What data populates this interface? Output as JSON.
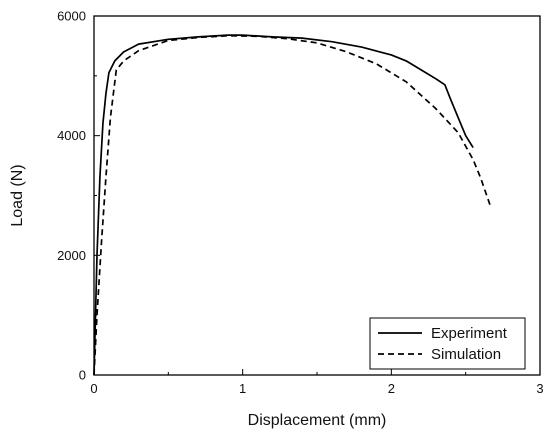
{
  "chart_data": {
    "type": "line",
    "title": "",
    "xlabel": "Displacement (mm)",
    "ylabel": "Load (N)",
    "xlim": [
      0,
      3
    ],
    "ylim": [
      0,
      6000
    ],
    "xticks": [
      0,
      1,
      2,
      3
    ],
    "yticks": [
      0,
      2000,
      4000,
      6000
    ],
    "x_tick_labels": [
      "0",
      "1",
      "2",
      "3"
    ],
    "y_tick_labels": [
      "0",
      "2000",
      "4000",
      "6000"
    ],
    "grid": false,
    "legend": {
      "position": "bottom-right",
      "entries": [
        "Experiment",
        "Simulation"
      ]
    },
    "series": [
      {
        "name": "Experiment",
        "style": "solid",
        "color": "#000000",
        "points": [
          [
            0.0,
            0
          ],
          [
            0.02,
            2000
          ],
          [
            0.04,
            3300
          ],
          [
            0.06,
            4200
          ],
          [
            0.08,
            4700
          ],
          [
            0.1,
            5050
          ],
          [
            0.14,
            5250
          ],
          [
            0.2,
            5400
          ],
          [
            0.3,
            5530
          ],
          [
            0.5,
            5610
          ],
          [
            0.7,
            5650
          ],
          [
            0.9,
            5680
          ],
          [
            1.0,
            5680
          ],
          [
            1.2,
            5650
          ],
          [
            1.4,
            5630
          ],
          [
            1.6,
            5570
          ],
          [
            1.8,
            5480
          ],
          [
            2.0,
            5350
          ],
          [
            2.1,
            5250
          ],
          [
            2.2,
            5100
          ],
          [
            2.3,
            4950
          ],
          [
            2.36,
            4850
          ],
          [
            2.4,
            4600
          ],
          [
            2.45,
            4300
          ],
          [
            2.5,
            4000
          ],
          [
            2.55,
            3800
          ]
        ]
      },
      {
        "name": "Simulation",
        "style": "dashed",
        "color": "#000000",
        "points": [
          [
            0.0,
            0
          ],
          [
            0.02,
            1000
          ],
          [
            0.05,
            2200
          ],
          [
            0.08,
            3300
          ],
          [
            0.11,
            4300
          ],
          [
            0.15,
            5100
          ],
          [
            0.2,
            5250
          ],
          [
            0.3,
            5420
          ],
          [
            0.5,
            5590
          ],
          [
            0.7,
            5640
          ],
          [
            0.9,
            5670
          ],
          [
            1.1,
            5660
          ],
          [
            1.3,
            5620
          ],
          [
            1.5,
            5550
          ],
          [
            1.7,
            5400
          ],
          [
            1.9,
            5200
          ],
          [
            2.1,
            4900
          ],
          [
            2.3,
            4450
          ],
          [
            2.45,
            4050
          ],
          [
            2.55,
            3600
          ],
          [
            2.6,
            3300
          ],
          [
            2.67,
            2800
          ]
        ]
      }
    ]
  }
}
